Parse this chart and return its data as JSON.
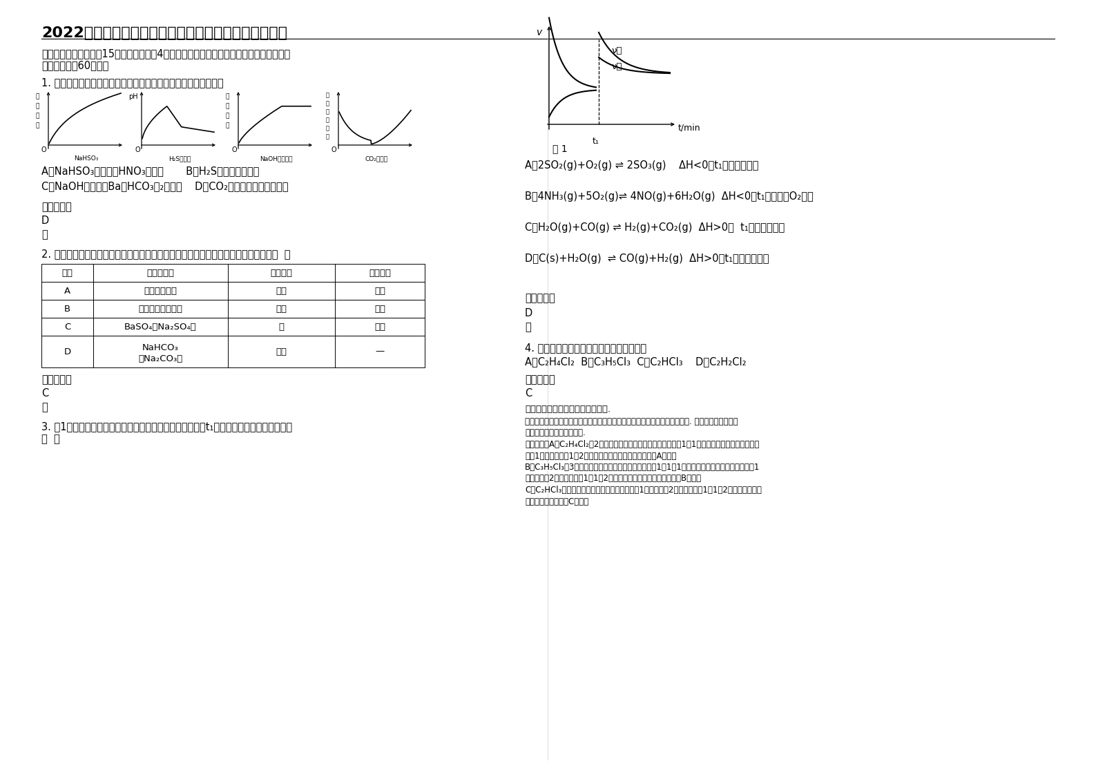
{
  "title": "2022年湖北省黄石市第七中学高二化学联考试卷含解析",
  "bg_color": "#ffffff",
  "section1_line1": "一、单选题（本大题共15个小题，每小题4分。在每小题给出的四个选项中，只有一项符合",
  "section1_line2": "题目要求，共60分。）",
  "q1_text": "1. 如图所示，下列实验过程中产生的现象与对应的图形相符合的是",
  "q1_opt1": "A．NaHSO₃粉末加入HNO₃溶液中       B．H₂S气体通入氯水中",
  "q1_opt2": "C．NaOH溶液滴入Ba（HCO₃）₂溶液中    D．CO₂气体通入澄清石灰水中",
  "q1_answer_label": "参考答案：",
  "q1_answer": "D",
  "q1_note": "略",
  "q2_text": "2. 为提纯下列物质（括号内为少量杂质），有关除杂试剂和分离方法的选择正确的是（  ）",
  "table_header": [
    "选项",
    "被提纯物质",
    "除杂试剂",
    "分离方法"
  ],
  "table_row_A": [
    "A",
    "己烷（己烯）",
    "溴水",
    "分液"
  ],
  "table_row_B": [
    "B",
    "乙酸乙酯（乙酸）",
    "乙醇",
    "蒸馏"
  ],
  "table_row_C": [
    "C",
    "BaSO₄（Na₂SO₄）",
    "水",
    "过滤"
  ],
  "table_row_D1": [
    "D",
    "NaHCO₃",
    "盐酸",
    "—"
  ],
  "table_row_D2": [
    "",
    "（Na₂CO₃）",
    "",
    ""
  ],
  "q2_answer_label": "参考答案：",
  "q2_answer": "C",
  "q2_note": "略",
  "q3_text_line1": "3. 图1为某化学反应的速率与时间的关系示意图。下列有关t₁时刻改变条件的说法正确的是",
  "q3_text_line2": "（  ）",
  "q3_A": "A．2SO₂(g)+O₂(g) ⇌ 2SO₃(g)    ΔH<0，t₁时刻升高温度",
  "q3_B": "B．4NH₃(g)+5O₂(g)⇌ 4NO(g)+6H₂O(g)  ΔH<0，t₁时刻增大O₂浓度",
  "q3_C": "C．H₂O(g)+CO(g) ⇌ H₂(g)+CO₂(g)  ΔH>0，  t₁时刻增大压强",
  "q3_D": "D．C(s)+H₂O(g)  ⇌ CO(g)+H₂(g)  ΔH>0，t₁时刻升高温度",
  "q3_answer_label": "参考答案：",
  "q3_answer": "D",
  "q3_note": "略",
  "q4_text": "4. 下列分子式中只表示一种纯净物的是（）",
  "q4_opts": "A．C₂H₄Cl₂  B．C₃H₅Cl₃  C．C₂HCl₃    D．C₂H₂Cl₂",
  "q4_answer_label": "参考答案：",
  "q4_answer": "C",
  "q4_exp_title": "考点：同分异构现象和同分异构体.",
  "q4_exp_lines": [
    "分析：纯净物是由同一种物质组成，根据分子式是否存在同分异构体进行解答. 同分异构体是分子式",
    "相同，但结构不同的化合物.",
    "解答：解：A、C₂H₄Cl₂中2个氯原子可以连接在同一碳原子上，为1，1－二氯乙烷；每个碳原子分别",
    "连接1个氯原子，为1，2－二氯乙烷，不能表示纯净物，故A错误；",
    "B、C₃H₅Cl₃中3个氯原子可以连接在同一碳原子上，为1，1，1－三氯乙烷；每个碳原子分别连接1",
    "个氯原子，2个氯原子，为1，1，2－三氯乙烷，不能表示纯净物，故B错误；",
    "C、C₂HCl₃只有一种结构，每个碳原子分别连接1个氢原子，2个氯原子，为1，1，2－三氯乙烯，不",
    "存在同分异构体，故C正确；"
  ],
  "graph1_ylabel": [
    "气",
    "体",
    "体",
    "积"
  ],
  "graph2_ylabel": "pH",
  "graph3_ylabel": [
    "沉",
    "淀",
    "质",
    "量"
  ],
  "graph4_ylabel": [
    "溶",
    "液",
    "导",
    "电",
    "能",
    "力"
  ],
  "graph1_xlabel": "NaHSO₃",
  "graph2_xlabel": "H₂S气体积",
  "graph3_xlabel": "NaOH溶液体积",
  "graph4_xlabel": "CO₂气体积",
  "fig1_xlabel": "t/min",
  "fig1_ylabel": "v",
  "fig1_t1": "t₁",
  "fig1_label": "图 1",
  "fig1_v_fwd": "ν正",
  "fig1_v_rev": "ν逆"
}
